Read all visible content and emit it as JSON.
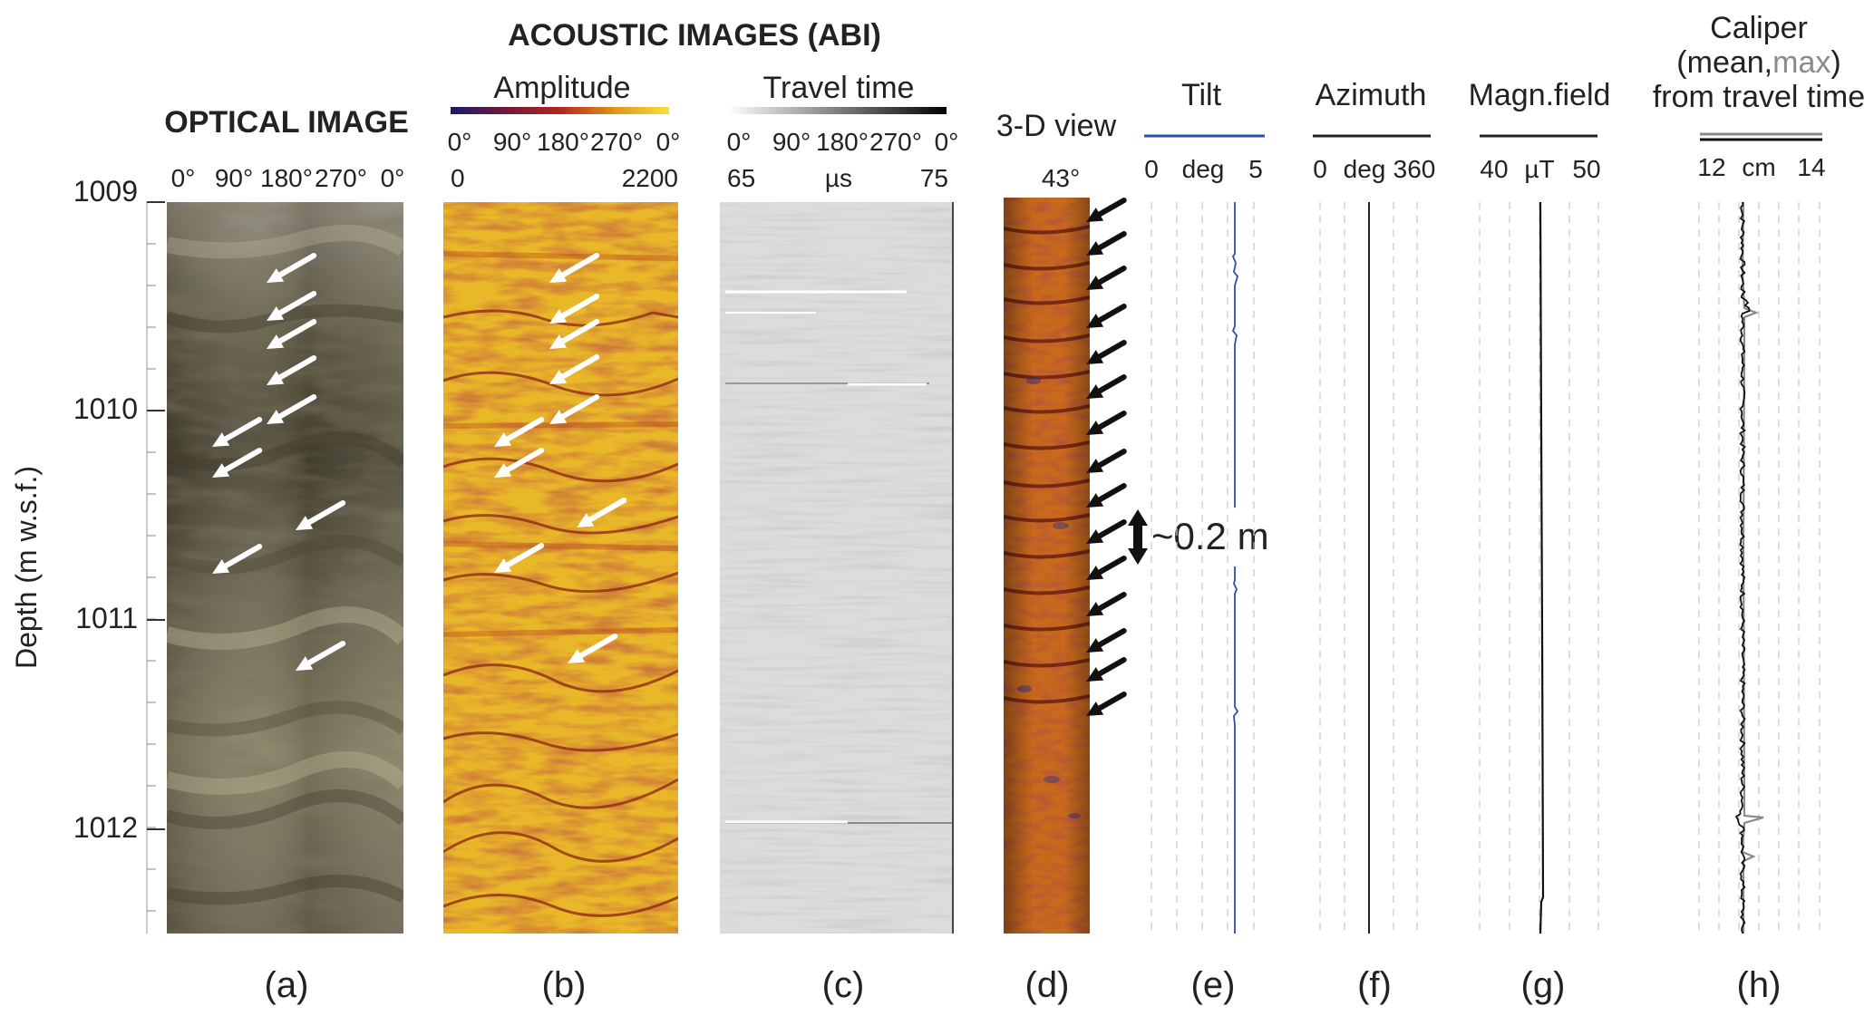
{
  "header": {
    "optical_title": "OPTICAL IMAGE",
    "acoustic_title": "ACOUSTIC IMAGES (ABI)",
    "amplitude_label": "Amplitude",
    "travel_time_label": "Travel time",
    "view3d_label": "3-D view",
    "view3d_angle": "43°"
  },
  "azimuth_ticks": [
    "0°",
    "90°",
    "180°",
    "270°",
    "0°"
  ],
  "amplitude_scale": {
    "min": "0",
    "max": "2200"
  },
  "travel_time_scale": {
    "min": "65",
    "unit": "µs",
    "max": "75"
  },
  "depth_axis": {
    "label": "Depth (m w.s.f.)",
    "ticks": [
      "1009",
      "1010",
      "1011",
      "1012"
    ],
    "range": [
      1009,
      1012.5
    ]
  },
  "logs": {
    "tilt": {
      "label": "Tilt",
      "min": "0",
      "unit": "deg",
      "max": "5",
      "color": "#2b4fa8"
    },
    "azimuth": {
      "label": "Azimuth",
      "min": "0",
      "unit": "deg",
      "max": "360",
      "color": "#222222"
    },
    "magn": {
      "label": "Magn.field",
      "min": "40",
      "unit": "µT",
      "max": "50",
      "color": "#111111"
    },
    "caliper": {
      "label_line1": "Caliper",
      "label_open": "(mean,",
      "label_max": "max",
      "label_close": ")",
      "label_line3": "from travel time",
      "min": "12",
      "unit": "cm",
      "max": "14",
      "mean_color": "#111111",
      "max_color": "#8a8a8a"
    }
  },
  "annotation": {
    "spacing": "~0.2 m"
  },
  "panel_letters": [
    "(a)",
    "(b)",
    "(c)",
    "(d)",
    "(e)",
    "(f)",
    "(g)",
    "(h)"
  ],
  "colors": {
    "amplitude_colormap": [
      "#1b1a6e",
      "#6e1a3a",
      "#b3261e",
      "#e0941c",
      "#f5e23a"
    ],
    "travel_time_colormap": [
      "#ffffff",
      "#000000"
    ],
    "optical_tone": "#6d6452",
    "arrow_white": "#ffffff",
    "arrow_black": "#111111"
  }
}
